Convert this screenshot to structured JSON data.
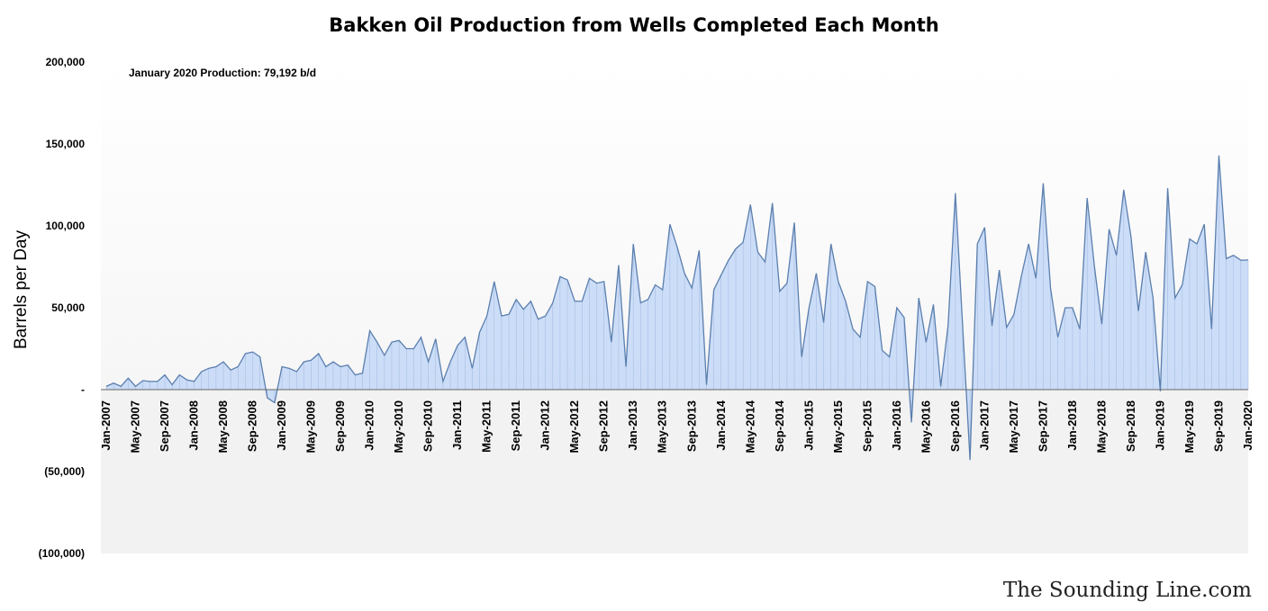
{
  "chart_data": {
    "type": "area",
    "title": "Bakken Oil Production from Wells Completed Each Month",
    "annotation": "January 2020 Production: 79,192 b/d",
    "ylabel": "Barrels per Day",
    "xlabel": "",
    "ylim": [
      -100000,
      200000
    ],
    "ytick_values": [
      -100000,
      -50000,
      0,
      50000,
      100000,
      150000,
      200000
    ],
    "ytick_labels": [
      "(100,000)",
      "(50,000)",
      "-",
      "50,000",
      "100,000",
      "150,000",
      "200,000"
    ],
    "x_start": "Jan-2007",
    "x_end": "Jan-2020",
    "xtick_labels": [
      "Jan-2007",
      "May-2007",
      "Sep-2007",
      "Jan-2008",
      "May-2008",
      "Sep-2008",
      "Jan-2009",
      "May-2009",
      "Sep-2009",
      "Jan-2010",
      "May-2010",
      "Sep-2010",
      "Jan-2011",
      "May-2011",
      "Sep-2011",
      "Jan-2012",
      "May-2012",
      "Sep-2012",
      "Jan-2013",
      "May-2013",
      "Sep-2013",
      "Jan-2014",
      "May-2014",
      "Sep-2014",
      "Jan-2015",
      "May-2015",
      "Sep-2015",
      "Jan-2016",
      "May-2016",
      "Sep-2016",
      "Jan-2017",
      "May-2017",
      "Sep-2017",
      "Jan-2018",
      "May-2018",
      "Sep-2018",
      "Jan-2019",
      "May-2019",
      "Sep-2019",
      "Jan-2020"
    ],
    "grid": false,
    "legend": "none",
    "colors": {
      "fill": "#c6d9f7",
      "line": "#5b7fae",
      "upper_band": "#ffffff",
      "lower_band": "#f2f2f2"
    },
    "series": [
      {
        "values": [
          2000,
          4000,
          2000,
          7000,
          2000,
          5500,
          5000,
          5000,
          9000,
          3000,
          9000,
          6000,
          5000,
          11000,
          13000,
          14000,
          17000,
          12000,
          14000,
          22000,
          23000,
          20000,
          -5000,
          -8000,
          14000,
          13000,
          11000,
          17000,
          18000,
          22000,
          14000,
          17000,
          14000,
          15000,
          9000,
          10000,
          36000,
          29000,
          21000,
          29000,
          30000,
          25000,
          25000,
          32000,
          17000,
          31000,
          5000,
          17000,
          27000,
          32000,
          13000,
          35000,
          45000,
          66000,
          45000,
          46000,
          55000,
          49000,
          54000,
          43000,
          45000,
          53000,
          69000,
          67000,
          54000,
          54000,
          68000,
          65000,
          66000,
          29000,
          76000,
          14000,
          89000,
          53000,
          55000,
          64000,
          61000,
          101000,
          87000,
          71000,
          62000,
          85000,
          3000,
          61000,
          70000,
          79000,
          86000,
          90000,
          113000,
          84000,
          78000,
          114000,
          60000,
          65000,
          102000,
          20000,
          50000,
          71000,
          41000,
          89000,
          66000,
          54000,
          37000,
          32000,
          66000,
          63000,
          24000,
          20000,
          50000,
          44000,
          -20000,
          56000,
          29000,
          52000,
          2000,
          39000,
          120000,
          38000,
          -43000,
          89000,
          99000,
          39000,
          73000,
          38000,
          46000,
          69000,
          89000,
          68000,
          126000,
          62000,
          32000,
          50000,
          50000,
          37000,
          117000,
          75000,
          40000,
          98000,
          82000,
          122000,
          93000,
          48000,
          84000,
          56000,
          -1000,
          123000,
          56000,
          64000,
          92000,
          89000,
          101000,
          37000,
          143000,
          80000,
          82000,
          79000,
          79192
        ]
      }
    ]
  },
  "credit": {
    "text": "The Sounding Line.com"
  }
}
